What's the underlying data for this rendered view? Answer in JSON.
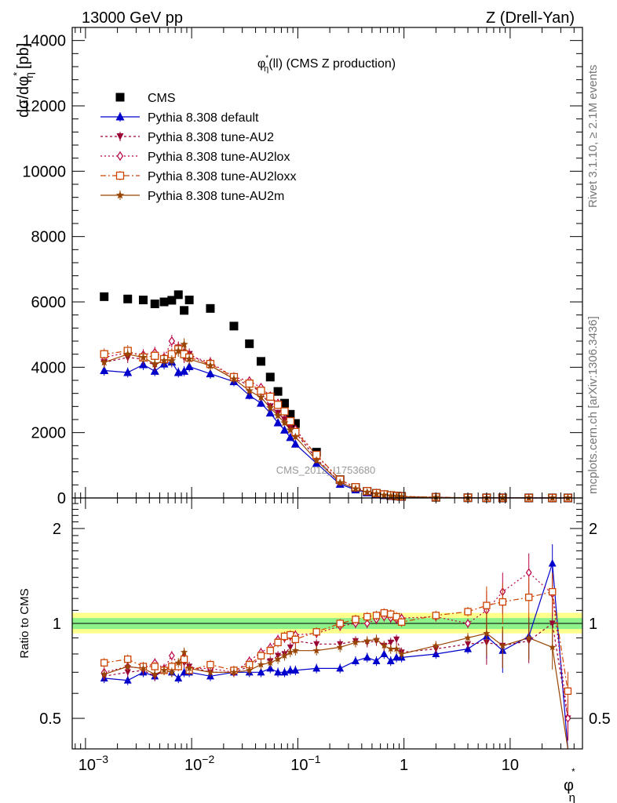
{
  "header": {
    "energy": "13000 GeV pp",
    "process": "Z (Drell-Yan)"
  },
  "side_labels": {
    "rivet": "Rivet 3.1.10, ≥ 2.1M events",
    "mcplots": "mcplots.cern.ch [arXiv:1306.3436]"
  },
  "analysis_id": "CMS_2012_I1753680",
  "chart_data": [
    {
      "type": "scatter",
      "panel": "main",
      "title": "φ*η(ll) (CMS Z production)",
      "title_parts": {
        "phi": "φ",
        "star": "*",
        "eta": "η",
        "rest": "(ll) (CMS Z production)"
      },
      "ylabel": "dσ/dφ*η [pb]",
      "ylabel_parts": {
        "num": "dσ/dφ",
        "star": "*",
        "eta": "η",
        "unit": "[pb]"
      },
      "xscale": "log",
      "xlim": [
        0.00075,
        48
      ],
      "ylim": [
        0,
        14400
      ],
      "yticks": [
        0,
        2000,
        4000,
        6000,
        8000,
        10000,
        12000,
        14000
      ],
      "yticklabels": [
        "0",
        "2000",
        "4000",
        "6000",
        "8000",
        "10000",
        "12000",
        "14000"
      ],
      "legend_position": "top-left",
      "x": [
        0.0015,
        0.0025,
        0.0035,
        0.0045,
        0.0055,
        0.0065,
        0.0075,
        0.0085,
        0.0095,
        0.015,
        0.025,
        0.035,
        0.045,
        0.055,
        0.065,
        0.075,
        0.085,
        0.095,
        0.15,
        0.25,
        0.35,
        0.45,
        0.55,
        0.65,
        0.75,
        0.85,
        0.95,
        2.0,
        4.0,
        6.0,
        8.5,
        15.0,
        25.0,
        35.0
      ],
      "series": [
        {
          "name": "CMS",
          "color": "#000000",
          "marker": "square",
          "values": [
            6160,
            6090,
            6060,
            5940,
            6000,
            6050,
            6220,
            5740,
            6060,
            5800,
            5260,
            4720,
            4180,
            3700,
            3260,
            2900,
            2560,
            2280,
            1400,
            560,
            320,
            200,
            140,
            100,
            75,
            58,
            48,
            20,
            6,
            3,
            2,
            1.2,
            0.6,
            0.4
          ]
        },
        {
          "name": "Pythia 8.308 default",
          "color": "#0000cc",
          "marker": "triangle-up",
          "values": [
            3900,
            3840,
            4080,
            3880,
            4100,
            4160,
            3840,
            3880,
            4020,
            3800,
            3560,
            3140,
            2900,
            2600,
            2300,
            2080,
            1850,
            1650,
            1060,
            420,
            250,
            160,
            110,
            80,
            58,
            45,
            37,
            16,
            5,
            2.8,
            1.7,
            1.6,
            0.9,
            0.1
          ]
        },
        {
          "name": "Pythia 8.308 tune-AU2",
          "color": "#990033",
          "marker": "triangle-down",
          "values": [
            4150,
            4300,
            4250,
            4050,
            4250,
            4400,
            4600,
            4300,
            4400,
            4050,
            3650,
            3450,
            3250,
            2800,
            2600,
            2400,
            2150,
            2000,
            1200,
            480,
            280,
            175,
            125,
            85,
            65,
            52,
            39,
            17,
            5,
            2.6,
            1.7,
            1.1,
            0.6,
            0.2
          ]
        },
        {
          "name": "Pythia 8.308 tune-AU2lox",
          "color": "#bb0044",
          "marker": "diamond-open",
          "values": [
            4300,
            4450,
            4380,
            4450,
            4300,
            4800,
            4600,
            4450,
            4350,
            4150,
            3700,
            3580,
            3380,
            3120,
            2900,
            2620,
            2320,
            2100,
            1300,
            550,
            320,
            200,
            145,
            105,
            78,
            60,
            50,
            21,
            6,
            3.3,
            2.5,
            1.8,
            0.5,
            0.2
          ]
        },
        {
          "name": "Pythia 8.308 tune-AU2loxx",
          "color": "#cc4400",
          "marker": "square-open",
          "values": [
            4400,
            4500,
            4300,
            4350,
            4250,
            4400,
            4550,
            4400,
            4300,
            4100,
            3700,
            3500,
            3280,
            3100,
            2850,
            2650,
            2350,
            2020,
            1320,
            560,
            330,
            210,
            148,
            108,
            80,
            60,
            48,
            21,
            6.5,
            3.5,
            2.3,
            1.4,
            0.8,
            0.25
          ]
        },
        {
          "name": "Pythia 8.308 tune-AU2m",
          "color": "#994400",
          "marker": "star",
          "values": [
            4150,
            4400,
            4300,
            4100,
            4200,
            4200,
            4500,
            4700,
            4250,
            4050,
            3640,
            3280,
            3080,
            2760,
            2520,
            2300,
            2080,
            1870,
            1150,
            470,
            280,
            175,
            125,
            85,
            62,
            48,
            38,
            17,
            5.5,
            2.8,
            1.7,
            1.1,
            0.2,
            0.05
          ]
        }
      ]
    },
    {
      "type": "line",
      "panel": "ratio",
      "ylabel": "Ratio to CMS",
      "xlabel": "φ*η",
      "xlabel_parts": {
        "phi": "φ",
        "star": "*",
        "eta": "η"
      },
      "xscale": "log",
      "xlim": [
        0.00075,
        48
      ],
      "xticks": [
        0.001,
        0.01,
        0.1,
        1,
        10
      ],
      "xticklabels": [
        {
          "base": "10",
          "exp": "−3"
        },
        {
          "base": "10",
          "exp": "−2"
        },
        {
          "base": "10",
          "exp": "−1"
        },
        {
          "base": "1",
          "exp": ""
        },
        {
          "base": "10",
          "exp": ""
        }
      ],
      "yscale": "log",
      "ylim": [
        0.4,
        2.5
      ],
      "yticks": [
        0.5,
        1,
        2
      ],
      "yticklabels": [
        "0.5",
        "1",
        "2"
      ],
      "bands": {
        "inner": [
          0.96,
          1.04
        ],
        "outer": [
          0.93,
          1.08
        ]
      },
      "x": [
        0.0015,
        0.0025,
        0.0035,
        0.0045,
        0.0055,
        0.0065,
        0.0075,
        0.0085,
        0.0095,
        0.015,
        0.025,
        0.035,
        0.045,
        0.055,
        0.065,
        0.075,
        0.085,
        0.095,
        0.15,
        0.25,
        0.35,
        0.45,
        0.55,
        0.65,
        0.75,
        0.85,
        0.95,
        2.0,
        4.0,
        6.0,
        8.5,
        15.0,
        25.0,
        35.0
      ],
      "series": [
        {
          "name": "Pythia 8.308 default",
          "color": "#0000cc",
          "values": [
            0.67,
            0.66,
            0.7,
            0.68,
            0.71,
            0.7,
            0.67,
            0.7,
            0.7,
            0.68,
            0.7,
            0.7,
            0.7,
            0.72,
            0.7,
            0.7,
            0.71,
            0.71,
            0.72,
            0.72,
            0.76,
            0.78,
            0.76,
            0.8,
            0.76,
            0.78,
            0.78,
            0.8,
            0.83,
            0.91,
            0.82,
            0.91,
            1.55,
            0.26
          ]
        },
        {
          "name": "Pythia 8.308 tune-AU2",
          "color": "#990033",
          "values": [
            0.68,
            0.7,
            0.71,
            0.68,
            0.71,
            0.73,
            0.74,
            0.75,
            0.73,
            0.7,
            0.7,
            0.73,
            0.78,
            0.76,
            0.79,
            0.8,
            0.84,
            0.88,
            0.86,
            0.86,
            0.88,
            0.87,
            0.88,
            0.85,
            0.87,
            0.89,
            0.81,
            0.83,
            0.86,
            0.87,
            0.85,
            0.88,
            1.0,
            0.5
          ]
        },
        {
          "name": "Pythia 8.308 tune-AU2lox",
          "color": "#bb0044",
          "values": [
            0.7,
            0.73,
            0.72,
            0.75,
            0.72,
            0.79,
            0.74,
            0.78,
            0.72,
            0.72,
            0.7,
            0.76,
            0.81,
            0.84,
            0.89,
            0.9,
            0.91,
            0.92,
            0.93,
            0.98,
            1.0,
            1.0,
            1.03,
            1.05,
            1.04,
            1.03,
            1.04,
            1.05,
            1.0,
            1.1,
            1.26,
            1.45,
            1.24,
            0.5
          ]
        },
        {
          "name": "Pythia 8.308 tune-AU2loxx",
          "color": "#cc4400",
          "values": [
            0.75,
            0.77,
            0.73,
            0.73,
            0.71,
            0.73,
            0.73,
            0.77,
            0.71,
            0.74,
            0.71,
            0.74,
            0.79,
            0.82,
            0.87,
            0.91,
            0.92,
            0.89,
            0.94,
            1.0,
            1.03,
            1.05,
            1.06,
            1.08,
            1.07,
            1.05,
            1.01,
            1.06,
            1.09,
            1.14,
            1.17,
            1.21,
            1.26,
            0.61
          ]
        },
        {
          "name": "Pythia 8.308 tune-AU2m",
          "color": "#994400",
          "values": [
            0.69,
            0.73,
            0.72,
            0.69,
            0.71,
            0.7,
            0.75,
            0.81,
            0.72,
            0.7,
            0.7,
            0.71,
            0.74,
            0.75,
            0.77,
            0.79,
            0.81,
            0.82,
            0.82,
            0.84,
            0.87,
            0.88,
            0.89,
            0.85,
            0.83,
            0.83,
            0.8,
            0.85,
            0.9,
            0.93,
            0.85,
            0.9,
            0.84,
            0.3
          ]
        }
      ]
    }
  ]
}
